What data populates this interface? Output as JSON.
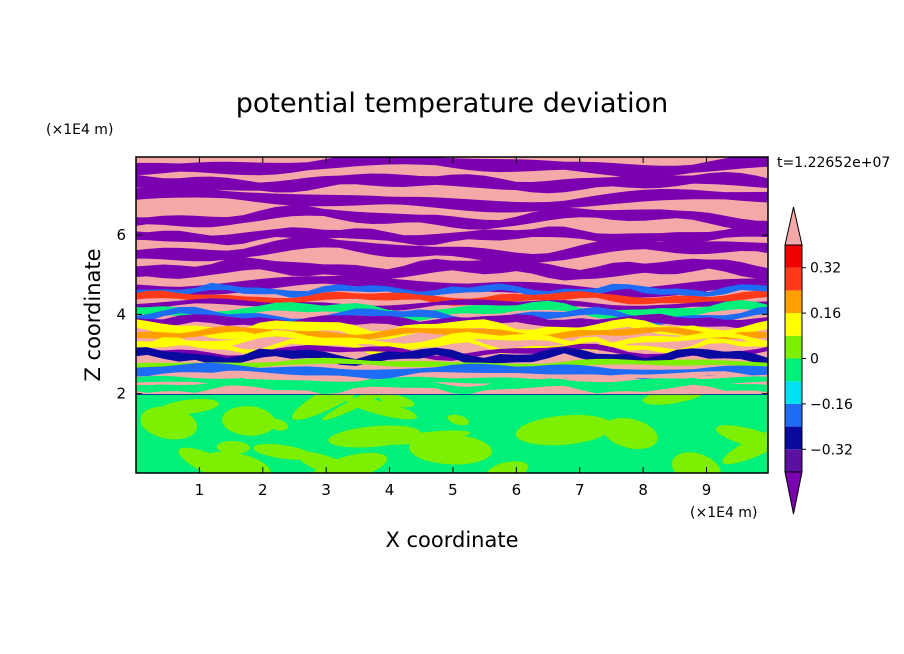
{
  "chart_data": {
    "type": "heatmap",
    "title": "potential temperature deviation",
    "xlabel": "X coordinate",
    "ylabel": "Z coordinate",
    "x_unit": "(×1E4 m)",
    "y_unit": "(×1E4 m)",
    "time_label": "t=1.22652e+07",
    "xlim": [
      0,
      9.97
    ],
    "ylim": [
      0,
      7.97
    ],
    "x_ticks": [
      "1",
      "2",
      "3",
      "4",
      "5",
      "6",
      "7",
      "8",
      "9"
    ],
    "y_ticks": [
      "2",
      "4",
      "6"
    ],
    "x_tick_values": [
      1,
      2,
      3,
      4,
      5,
      6,
      7,
      8,
      9
    ],
    "y_tick_values": [
      2,
      4,
      6
    ],
    "colorbar": {
      "levels": [
        -0.4,
        -0.32,
        -0.24,
        -0.16,
        -0.08,
        0,
        0.08,
        0.16,
        0.24,
        0.32,
        0.4
      ],
      "colors": [
        "#7a00b0",
        "#5a10a0",
        "#0a0aa0",
        "#1e6cf5",
        "#00e0f0",
        "#00f07a",
        "#7cf000",
        "#ffff00",
        "#ffa000",
        "#ff3a1a",
        "#f00000",
        "#f5a8a8"
      ],
      "labels": [
        "0.32",
        "0.16",
        "0",
        "−0.16",
        "−0.32"
      ],
      "label_values": [
        0.32,
        0.16,
        0,
        -0.16,
        -0.32
      ]
    },
    "boundary_layer_top": 2.0
  }
}
